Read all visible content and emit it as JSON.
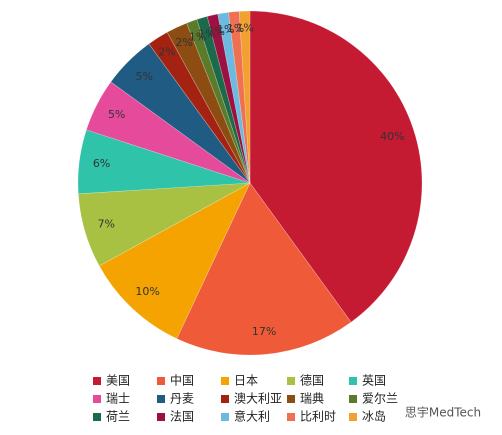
{
  "chart_data": {
    "type": "pie",
    "categories": [
      "美国",
      "中国",
      "日本",
      "德国",
      "英国",
      "瑞士",
      "丹麦",
      "澳大利亚",
      "瑞典",
      "爱尔兰",
      "荷兰",
      "法国",
      "意大利",
      "比利时",
      "冰岛"
    ],
    "values": [
      40,
      17,
      10,
      7,
      6,
      5,
      5,
      2,
      2,
      1,
      1,
      1,
      1,
      1,
      1
    ],
    "value_labels": [
      "40%",
      "17%",
      "10%",
      "7%",
      "6%",
      "5%",
      "5%",
      "2%",
      "2%",
      "1%",
      "1%",
      "1%",
      "1%",
      "1%",
      "1%"
    ],
    "colors": [
      "#c41a32",
      "#ef5a38",
      "#f4a300",
      "#a9c143",
      "#2fc3a9",
      "#e64a9a",
      "#1f5b82",
      "#a42212",
      "#8c4c12",
      "#5b7b2b",
      "#1b6b4b",
      "#9b1142",
      "#6cb9e1",
      "#f07152",
      "#f2a032"
    ],
    "legend": "bottom"
  },
  "watermark": "思宇MedTech"
}
